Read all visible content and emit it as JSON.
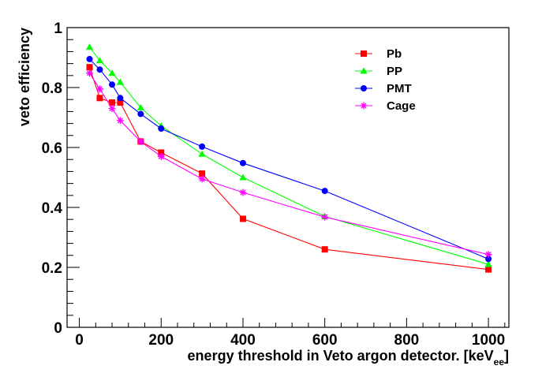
{
  "chart_data": {
    "type": "line",
    "title": "",
    "xlabel": "energy threshold in Veto argon detector. [keV",
    "xlabel_sub": "ee",
    "xlabel_close": "]",
    "ylabel": "veto efficiency",
    "xlim": [
      -30,
      1050
    ],
    "ylim": [
      0,
      1
    ],
    "xticks": [
      0,
      200,
      400,
      600,
      800,
      1000
    ],
    "yticks": [
      0,
      0.2,
      0.4,
      0.6,
      0.8,
      1
    ],
    "xtick_labels": [
      "0",
      "200",
      "400",
      "600",
      "800",
      "1000"
    ],
    "ytick_labels": [
      "0",
      "0.2",
      "0.4",
      "0.6",
      "0.8",
      "1"
    ],
    "grid": false,
    "legend_position": "top-right",
    "series": [
      {
        "name": "Pb",
        "color": "#ff0000",
        "marker": "square",
        "x": [
          25,
          50,
          80,
          100,
          150,
          200,
          300,
          400,
          600,
          1000
        ],
        "y": [
          0.868,
          0.765,
          0.75,
          0.75,
          0.62,
          0.583,
          0.513,
          0.362,
          0.26,
          0.193
        ]
      },
      {
        "name": "PP",
        "color": "#00ff00",
        "marker": "triangle",
        "x": [
          25,
          50,
          80,
          100,
          150,
          200,
          300,
          400,
          600,
          1000
        ],
        "y": [
          0.935,
          0.89,
          0.848,
          0.818,
          0.733,
          0.672,
          0.578,
          0.5,
          0.37,
          0.21
        ]
      },
      {
        "name": "PMT",
        "color": "#0000ff",
        "marker": "circle",
        "x": [
          25,
          50,
          80,
          100,
          150,
          200,
          300,
          400,
          600,
          1000
        ],
        "y": [
          0.895,
          0.86,
          0.81,
          0.765,
          0.712,
          0.663,
          0.603,
          0.548,
          0.455,
          0.228
        ]
      },
      {
        "name": "Cage",
        "color": "#ff00ff",
        "marker": "star",
        "x": [
          25,
          50,
          80,
          100,
          150,
          200,
          300,
          400,
          600,
          1000
        ],
        "y": [
          0.848,
          0.795,
          0.73,
          0.69,
          0.62,
          0.57,
          0.495,
          0.45,
          0.368,
          0.243
        ]
      }
    ]
  }
}
